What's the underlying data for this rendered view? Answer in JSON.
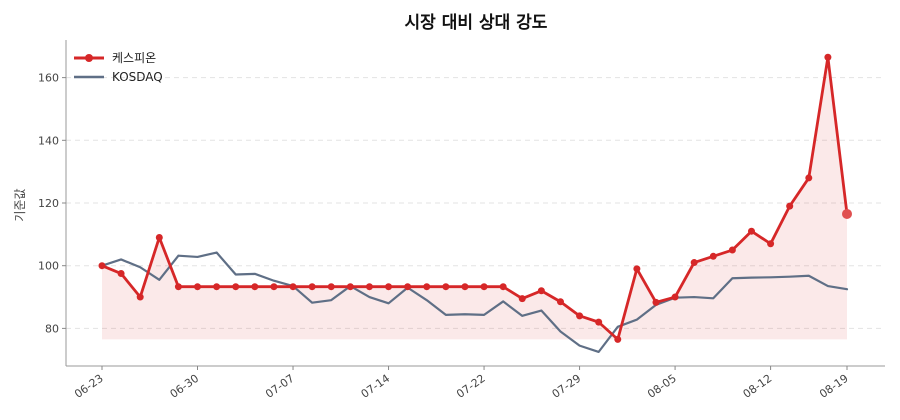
{
  "chart_data": {
    "type": "line",
    "title": "시장 대비 상대 강도",
    "xlabel": "",
    "ylabel": "기준값",
    "ylim": [
      68,
      172
    ],
    "yticks": [
      80,
      100,
      120,
      140,
      160
    ],
    "grid": true,
    "legend_position": "top-left",
    "x_tick_labels": [
      "06-23",
      "06-30",
      "07-07",
      "07-14",
      "07-22",
      "07-29",
      "08-05",
      "08-12",
      "08-19"
    ],
    "x_tick_indices": [
      0,
      5,
      10,
      15,
      20,
      25,
      30,
      35,
      39
    ],
    "series": [
      {
        "name": "케스피온",
        "color": "#d62728",
        "values": [
          100,
          97.5,
          90,
          109,
          93.3,
          93.3,
          93.3,
          93.3,
          93.3,
          93.3,
          93.3,
          93.3,
          93.3,
          93.3,
          93.3,
          93.3,
          93.3,
          93.3,
          93.3,
          93.3,
          93.3,
          93.3,
          89.5,
          92,
          88.5,
          84,
          82,
          76.5,
          99,
          88.3,
          90,
          101,
          103,
          105,
          111,
          107,
          119,
          128,
          166.5,
          116.5
        ]
      },
      {
        "name": "KOSDAQ",
        "color": "#5f6f86",
        "values": [
          100,
          102,
          99.5,
          95.5,
          103.2,
          102.8,
          104.2,
          97.2,
          97.4,
          95.2,
          93.5,
          88.2,
          89,
          93.5,
          90,
          88,
          93,
          89,
          84.3,
          84.5,
          84.3,
          88.6,
          84,
          85.7,
          79,
          74.5,
          72.5,
          80.5,
          82.8,
          87.5,
          89.8,
          90,
          89.6,
          96,
          96.2,
          96.3,
          96.5,
          96.8,
          93.5,
          92.5
        ]
      }
    ]
  }
}
